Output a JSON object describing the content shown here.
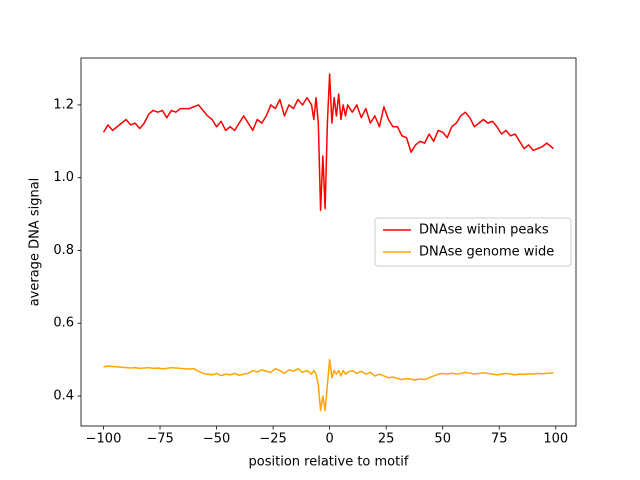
{
  "chart_data": {
    "type": "line",
    "xlabel": "position relative to motif",
    "ylabel": "average DNA signal",
    "x": [
      -100,
      -98,
      -96,
      -94,
      -92,
      -90,
      -88,
      -86,
      -84,
      -82,
      -80,
      -78,
      -76,
      -74,
      -72,
      -70,
      -68,
      -66,
      -64,
      -62,
      -60,
      -58,
      -56,
      -54,
      -52,
      -50,
      -48,
      -46,
      -44,
      -42,
      -40,
      -38,
      -36,
      -34,
      -32,
      -30,
      -28,
      -26,
      -24,
      -22,
      -20,
      -18,
      -16,
      -14,
      -12,
      -10,
      -8,
      -7,
      -6,
      -5,
      -4,
      -3,
      -2,
      -1,
      0,
      1,
      2,
      3,
      4,
      5,
      6,
      7,
      8,
      10,
      12,
      14,
      16,
      18,
      20,
      22,
      24,
      26,
      28,
      30,
      32,
      34,
      36,
      38,
      40,
      42,
      44,
      46,
      48,
      50,
      52,
      54,
      56,
      58,
      60,
      62,
      64,
      66,
      68,
      70,
      72,
      74,
      76,
      78,
      80,
      82,
      84,
      86,
      88,
      90,
      92,
      94,
      96,
      98,
      99
    ],
    "series": [
      {
        "name": "DNAse within peaks",
        "color": "#ff0000",
        "values": [
          1.125,
          1.145,
          1.13,
          1.14,
          1.15,
          1.16,
          1.145,
          1.15,
          1.135,
          1.15,
          1.175,
          1.185,
          1.18,
          1.185,
          1.165,
          1.185,
          1.18,
          1.19,
          1.19,
          1.19,
          1.195,
          1.2,
          1.185,
          1.17,
          1.16,
          1.14,
          1.155,
          1.13,
          1.14,
          1.13,
          1.15,
          1.17,
          1.15,
          1.13,
          1.16,
          1.15,
          1.17,
          1.2,
          1.19,
          1.215,
          1.17,
          1.2,
          1.19,
          1.215,
          1.2,
          1.22,
          1.2,
          1.16,
          1.22,
          1.15,
          0.91,
          1.06,
          0.915,
          1.15,
          1.285,
          1.15,
          1.22,
          1.17,
          1.23,
          1.16,
          1.2,
          1.17,
          1.2,
          1.18,
          1.2,
          1.165,
          1.19,
          1.15,
          1.17,
          1.14,
          1.195,
          1.16,
          1.14,
          1.14,
          1.115,
          1.11,
          1.07,
          1.09,
          1.1,
          1.095,
          1.12,
          1.1,
          1.13,
          1.125,
          1.11,
          1.14,
          1.15,
          1.17,
          1.18,
          1.165,
          1.14,
          1.15,
          1.16,
          1.15,
          1.155,
          1.14,
          1.12,
          1.13,
          1.115,
          1.12,
          1.1,
          1.08,
          1.09,
          1.075,
          1.08,
          1.085,
          1.095,
          1.085,
          1.08
        ]
      },
      {
        "name": "DNAse genome wide",
        "color": "#ffa500",
        "values": [
          0.48,
          0.482,
          0.481,
          0.48,
          0.479,
          0.478,
          0.477,
          0.478,
          0.476,
          0.477,
          0.478,
          0.476,
          0.477,
          0.475,
          0.476,
          0.478,
          0.477,
          0.476,
          0.475,
          0.474,
          0.475,
          0.468,
          0.462,
          0.46,
          0.458,
          0.462,
          0.456,
          0.46,
          0.458,
          0.462,
          0.457,
          0.46,
          0.462,
          0.47,
          0.466,
          0.472,
          0.468,
          0.465,
          0.475,
          0.47,
          0.462,
          0.472,
          0.468,
          0.475,
          0.465,
          0.47,
          0.46,
          0.47,
          0.46,
          0.43,
          0.36,
          0.4,
          0.36,
          0.43,
          0.5,
          0.45,
          0.47,
          0.46,
          0.47,
          0.455,
          0.47,
          0.46,
          0.465,
          0.47,
          0.462,
          0.468,
          0.46,
          0.465,
          0.455,
          0.46,
          0.455,
          0.45,
          0.452,
          0.448,
          0.445,
          0.448,
          0.446,
          0.444,
          0.447,
          0.445,
          0.45,
          0.455,
          0.46,
          0.462,
          0.46,
          0.463,
          0.46,
          0.462,
          0.465,
          0.463,
          0.46,
          0.462,
          0.464,
          0.462,
          0.46,
          0.458,
          0.46,
          0.462,
          0.46,
          0.458,
          0.46,
          0.459,
          0.461,
          0.46,
          0.462,
          0.461,
          0.462,
          0.463,
          0.463
        ]
      }
    ],
    "xlim": [
      -109.95,
      108.95
    ],
    "xticks": [
      -100,
      -75,
      -50,
      -25,
      0,
      25,
      50,
      75,
      100
    ],
    "ylim": [
      0.3175,
      1.329
    ],
    "yticks": [
      0.4,
      0.6,
      0.8,
      {
        "value": 1.0,
        "label": "1.0"
      },
      1.2
    ],
    "legend": "center right"
  }
}
